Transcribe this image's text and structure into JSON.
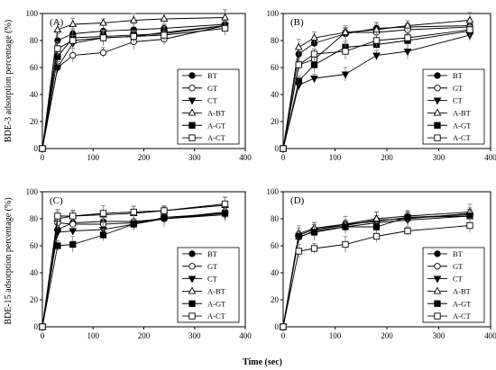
{
  "figure": {
    "xlabel": "Time (sec)",
    "ylabel_top": "BDE-3 adsorption percentage (%)",
    "ylabel_bottom": "BDE-15 adsorption percentage (%)"
  },
  "chart_data": [
    {
      "type": "line",
      "panel": "(A)",
      "x": [
        0,
        30,
        60,
        120,
        180,
        240,
        360
      ],
      "xlim": [
        0,
        400
      ],
      "ylim": [
        0,
        100
      ],
      "xticks": [
        "0",
        "100",
        "200",
        "300",
        "400"
      ],
      "yticks": [
        "0",
        "20",
        "40",
        "60",
        "80",
        "100"
      ],
      "legend_position": "lower-right",
      "grid": false,
      "series": [
        {
          "name": "BT",
          "marker": "circle-filled",
          "values": [
            0,
            80,
            85,
            87,
            88,
            89,
            92
          ]
        },
        {
          "name": "GT",
          "marker": "circle-open",
          "values": [
            0,
            60,
            69,
            71,
            79,
            81,
            91
          ]
        },
        {
          "name": "CT",
          "marker": "triangle-down-filled",
          "values": [
            0,
            60,
            78,
            82,
            83,
            86,
            91
          ]
        },
        {
          "name": "A-BT",
          "marker": "triangle-up-open",
          "values": [
            0,
            88,
            92,
            93,
            95,
            96,
            97
          ]
        },
        {
          "name": "A-GT",
          "marker": "square-filled",
          "values": [
            0,
            68,
            82,
            83,
            84,
            85,
            91
          ]
        },
        {
          "name": "A-CT",
          "marker": "square-open",
          "values": [
            0,
            74,
            80,
            82,
            83,
            84,
            89
          ]
        }
      ]
    },
    {
      "type": "line",
      "panel": "(B)",
      "x": [
        0,
        30,
        60,
        120,
        180,
        240,
        360
      ],
      "xlim": [
        0,
        400
      ],
      "ylim": [
        0,
        100
      ],
      "xticks": [
        "0",
        "100",
        "200",
        "300",
        "400"
      ],
      "yticks": [
        "0",
        "20",
        "40",
        "60",
        "80",
        "100"
      ],
      "legend_position": "lower-right",
      "grid": false,
      "series": [
        {
          "name": "BT",
          "marker": "circle-filled",
          "values": [
            0,
            70,
            78,
            85,
            89,
            90,
            91
          ]
        },
        {
          "name": "GT",
          "marker": "circle-open",
          "values": [
            0,
            62,
            66,
            86,
            86,
            88,
            90
          ]
        },
        {
          "name": "CT",
          "marker": "triangle-down-filled",
          "values": [
            0,
            47,
            52,
            55,
            69,
            72,
            84
          ]
        },
        {
          "name": "A-BT",
          "marker": "triangle-up-open",
          "values": [
            0,
            75,
            82,
            86,
            88,
            91,
            95
          ]
        },
        {
          "name": "A-GT",
          "marker": "square-filled",
          "values": [
            0,
            50,
            62,
            75,
            77,
            80,
            87
          ]
        },
        {
          "name": "A-CT",
          "marker": "square-open",
          "values": [
            0,
            62,
            70,
            72,
            80,
            82,
            88
          ]
        }
      ]
    },
    {
      "type": "line",
      "panel": "(C)",
      "x": [
        0,
        30,
        60,
        120,
        180,
        240,
        360
      ],
      "xlim": [
        0,
        400
      ],
      "ylim": [
        0,
        100
      ],
      "xticks": [
        "0",
        "100",
        "200",
        "300",
        "400"
      ],
      "yticks": [
        "0",
        "20",
        "40",
        "60",
        "80",
        "100"
      ],
      "legend_position": "lower-right",
      "grid": false,
      "series": [
        {
          "name": "BT",
          "marker": "circle-filled",
          "values": [
            0,
            72,
            77,
            78,
            78,
            80,
            85
          ]
        },
        {
          "name": "GT",
          "marker": "circle-open",
          "values": [
            0,
            77,
            76,
            76,
            77,
            80,
            84
          ]
        },
        {
          "name": "CT",
          "marker": "triangle-down-filled",
          "values": [
            0,
            70,
            71,
            72,
            76,
            80,
            83
          ]
        },
        {
          "name": "A-BT",
          "marker": "triangle-up-open",
          "values": [
            0,
            80,
            82,
            83,
            84,
            86,
            90
          ]
        },
        {
          "name": "A-GT",
          "marker": "square-filled",
          "values": [
            0,
            60,
            61,
            68,
            76,
            81,
            84
          ]
        },
        {
          "name": "A-CT",
          "marker": "square-open",
          "values": [
            0,
            82,
            82,
            84,
            85,
            86,
            91
          ]
        }
      ]
    },
    {
      "type": "line",
      "panel": "(D)",
      "x": [
        0,
        30,
        60,
        120,
        180,
        240,
        360
      ],
      "xlim": [
        0,
        400
      ],
      "ylim": [
        0,
        100
      ],
      "xticks": [
        "0",
        "100",
        "200",
        "300",
        "400"
      ],
      "yticks": [
        "0",
        "20",
        "40",
        "60",
        "80",
        "100"
      ],
      "legend_position": "lower-right",
      "grid": false,
      "series": [
        {
          "name": "BT",
          "marker": "circle-filled",
          "values": [
            0,
            68,
            72,
            76,
            78,
            81,
            83
          ]
        },
        {
          "name": "GT",
          "marker": "circle-open",
          "values": [
            0,
            68,
            72,
            75,
            79,
            80,
            84
          ]
        },
        {
          "name": "CT",
          "marker": "triangle-down-filled",
          "values": [
            0,
            66,
            71,
            74,
            77,
            79,
            82
          ]
        },
        {
          "name": "A-BT",
          "marker": "triangle-up-open",
          "values": [
            0,
            69,
            73,
            76,
            80,
            82,
            85
          ]
        },
        {
          "name": "A-GT",
          "marker": "square-filled",
          "values": [
            0,
            67,
            70,
            74,
            74,
            81,
            82
          ]
        },
        {
          "name": "A-CT",
          "marker": "square-open",
          "values": [
            0,
            56,
            58,
            61,
            67,
            71,
            75
          ]
        }
      ]
    }
  ]
}
